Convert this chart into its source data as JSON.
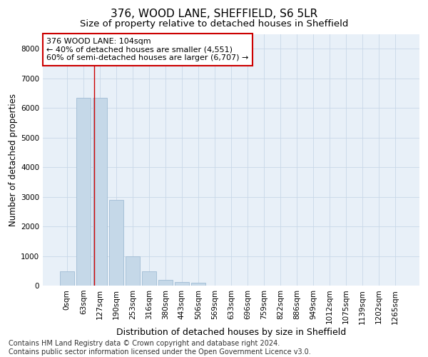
{
  "title_line1": "376, WOOD LANE, SHEFFIELD, S6 5LR",
  "title_line2": "Size of property relative to detached houses in Sheffield",
  "xlabel": "Distribution of detached houses by size in Sheffield",
  "ylabel": "Number of detached properties",
  "categories": [
    "0sqm",
    "63sqm",
    "127sqm",
    "190sqm",
    "253sqm",
    "316sqm",
    "380sqm",
    "443sqm",
    "506sqm",
    "569sqm",
    "633sqm",
    "696sqm",
    "759sqm",
    "822sqm",
    "886sqm",
    "949sqm",
    "1012sqm",
    "1075sqm",
    "1139sqm",
    "1202sqm",
    "1265sqm"
  ],
  "values": [
    480,
    6350,
    6350,
    2900,
    990,
    490,
    190,
    120,
    90,
    0,
    0,
    0,
    0,
    0,
    0,
    0,
    0,
    0,
    0,
    0,
    0
  ],
  "bar_color": "#c5d8e8",
  "bar_edge_color": "#a0bcd4",
  "vline_x": 1.65,
  "vline_color": "#cc0000",
  "annotation_line1": "376 WOOD LANE: 104sqm",
  "annotation_line2": "← 40% of detached houses are smaller (4,551)",
  "annotation_line3": "60% of semi-detached houses are larger (6,707) →",
  "annotation_box_color": "#ffffff",
  "annotation_box_edge": "#cc0000",
  "ylim": [
    0,
    8500
  ],
  "yticks": [
    0,
    1000,
    2000,
    3000,
    4000,
    5000,
    6000,
    7000,
    8000
  ],
  "grid_color": "#c8d8e8",
  "background_color": "#e8f0f8",
  "footer": "Contains HM Land Registry data © Crown copyright and database right 2024.\nContains public sector information licensed under the Open Government Licence v3.0.",
  "title1_fontsize": 11,
  "title2_fontsize": 9.5,
  "xlabel_fontsize": 9,
  "ylabel_fontsize": 8.5,
  "tick_fontsize": 7.5,
  "annotation_fontsize": 8,
  "footer_fontsize": 7
}
